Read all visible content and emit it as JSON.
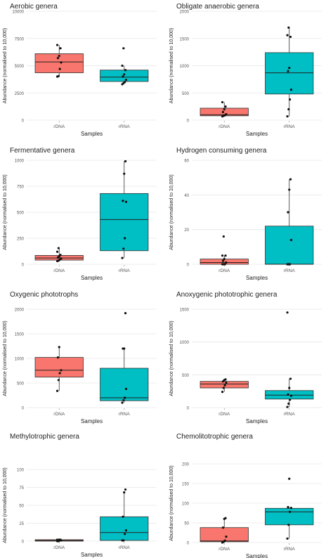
{
  "colors": {
    "rdna_fill": "#F8766D",
    "rrna_fill": "#00BFC4",
    "grid": "#e6e6e6",
    "text": "#222222",
    "axis_text": "#555555"
  },
  "chart_data": [
    {
      "type": "box",
      "title": "Aerobic genera",
      "xlabel": "Samples",
      "ylabel": "Abundance (normalised to 10,000)",
      "categories": [
        "rDNA",
        "rRNA"
      ],
      "ylim": [
        0,
        10000
      ],
      "yticks": [
        "0",
        "2500",
        "5000",
        "7500",
        "10000"
      ],
      "boxes": [
        {
          "name": "rDNA",
          "min": 4000,
          "q1": 4350,
          "median": 5350,
          "q3": 6100,
          "max": 6900,
          "points": [
            4000,
            4050,
            4700,
            5300,
            5700,
            5900,
            6600,
            6900
          ]
        },
        {
          "name": "rRNA",
          "min": 3300,
          "q1": 3550,
          "median": 3950,
          "q3": 4600,
          "max": 5000,
          "points": [
            3300,
            3400,
            3500,
            3700,
            4000,
            4200,
            4600,
            5000,
            6600
          ]
        }
      ]
    },
    {
      "type": "box",
      "title": "Obligate anaerobic genera",
      "xlabel": "Samples",
      "ylabel": "Abundance (normalised to 10,000)",
      "categories": [
        "rDNA",
        "rRNA"
      ],
      "ylim": [
        0,
        2000
      ],
      "yticks": [
        "0",
        "500",
        "1000",
        "1500",
        "2000"
      ],
      "boxes": [
        {
          "name": "rDNA",
          "min": 70,
          "q1": 80,
          "median": 100,
          "q3": 220,
          "max": 330,
          "points": [
            70,
            80,
            90,
            110,
            150,
            200,
            250,
            330
          ]
        },
        {
          "name": "rRNA",
          "min": 70,
          "q1": 480,
          "median": 870,
          "q3": 1240,
          "max": 1700,
          "points": [
            70,
            200,
            380,
            560,
            900,
            960,
            1530,
            1560,
            1700
          ]
        }
      ]
    },
    {
      "type": "box",
      "title": "Fermentative genera",
      "xlabel": "Samples",
      "ylabel": "Abundance (normalised to 10,000)",
      "categories": [
        "rDNA",
        "rRNA"
      ],
      "ylim": [
        0,
        1000
      ],
      "yticks": [
        "0",
        "250",
        "500",
        "750",
        "1000"
      ],
      "boxes": [
        {
          "name": "rDNA",
          "min": 30,
          "q1": 40,
          "median": 60,
          "q3": 85,
          "max": 155,
          "points": [
            30,
            35,
            45,
            55,
            65,
            75,
            90,
            120,
            155
          ]
        },
        {
          "name": "rRNA",
          "min": 60,
          "q1": 130,
          "median": 430,
          "q3": 680,
          "max": 990,
          "points": [
            60,
            150,
            250,
            600,
            610,
            870,
            990
          ]
        }
      ]
    },
    {
      "type": "box",
      "title": "Hydrogen consuming genera",
      "xlabel": "Samples",
      "ylabel": "Abundance (normalised to 10,000)",
      "categories": [
        "rDNA",
        "rRNA"
      ],
      "ylim": [
        0,
        60
      ],
      "yticks": [
        "0",
        "20",
        "40",
        "60"
      ],
      "boxes": [
        {
          "name": "rDNA",
          "min": 0,
          "q1": 0,
          "median": 1,
          "q3": 3,
          "max": 5,
          "points": [
            0,
            0,
            0,
            1,
            2,
            3,
            5,
            5,
            16
          ]
        },
        {
          "name": "rRNA",
          "min": 0,
          "q1": 0,
          "median": 0,
          "q3": 22,
          "max": 49,
          "points": [
            0,
            0,
            0,
            14,
            30,
            43,
            49
          ]
        }
      ]
    },
    {
      "type": "box",
      "title": "Oxygenic phototrophs",
      "xlabel": "Samples",
      "ylabel": "Abundance (normalised to 10,000)",
      "categories": [
        "rDNA",
        "rRNA"
      ],
      "ylim": [
        0,
        2000
      ],
      "yticks": [
        "0",
        "500",
        "1000",
        "1500",
        "2000"
      ],
      "boxes": [
        {
          "name": "rDNA",
          "min": 340,
          "q1": 620,
          "median": 760,
          "q3": 1020,
          "max": 1230,
          "points": [
            340,
            560,
            700,
            760,
            1020,
            1230
          ]
        },
        {
          "name": "rRNA",
          "min": 100,
          "q1": 140,
          "median": 200,
          "q3": 800,
          "max": 1200,
          "points": [
            100,
            150,
            200,
            380,
            1200,
            1200,
            1920
          ]
        }
      ]
    },
    {
      "type": "box",
      "title": "Anoxygenic phototrophic genera",
      "xlabel": "Samples",
      "ylabel": "Abundance (normalised to 10,000)",
      "categories": [
        "rDNA",
        "rRNA"
      ],
      "ylim": [
        0,
        1500
      ],
      "yticks": [
        "0",
        "500",
        "1000",
        "1500"
      ],
      "boxes": [
        {
          "name": "rDNA",
          "min": 240,
          "q1": 300,
          "median": 360,
          "q3": 400,
          "max": 430,
          "points": [
            240,
            300,
            340,
            380,
            400,
            420,
            430
          ]
        },
        {
          "name": "rRNA",
          "min": 10,
          "q1": 130,
          "median": 190,
          "q3": 260,
          "max": 440,
          "points": [
            10,
            60,
            120,
            180,
            200,
            300,
            440,
            1450
          ]
        }
      ]
    },
    {
      "type": "box",
      "title": "Methylotrophic genera",
      "xlabel": "Samples",
      "ylabel": "Abundance (normalised to 10,000)",
      "categories": [
        "rDNA",
        "rRNA"
      ],
      "ylim": [
        0,
        100
      ],
      "yticks": [
        "0",
        "25",
        "50",
        "75",
        "100"
      ],
      "boxes": [
        {
          "name": "rDNA",
          "min": 0,
          "q1": 0,
          "median": 1,
          "q3": 2,
          "max": 2,
          "points": [
            0,
            0,
            1,
            1,
            1,
            2,
            2,
            2
          ]
        },
        {
          "name": "rRNA",
          "min": 1,
          "q1": 1,
          "median": 12,
          "q3": 34,
          "max": 68,
          "points": [
            1,
            1,
            10,
            15,
            34,
            68,
            72
          ]
        }
      ]
    },
    {
      "type": "box",
      "title": "Chemolitotrophic genera",
      "xlabel": "Samples",
      "ylabel": "Abundance (normalised to 10,000)",
      "categories": [
        "rDNA",
        "rRNA"
      ],
      "ylim": [
        0,
        200
      ],
      "yticks": [
        "0",
        "50",
        "100",
        "150",
        "200"
      ],
      "boxes": [
        {
          "name": "rDNA",
          "min": 0,
          "q1": 2,
          "median": 4,
          "q3": 38,
          "max": 62,
          "points": [
            0,
            2,
            5,
            15,
            38,
            60,
            62
          ]
        },
        {
          "name": "rRNA",
          "min": 10,
          "q1": 45,
          "median": 78,
          "q3": 87,
          "max": 90,
          "points": [
            10,
            45,
            78,
            88,
            90,
            162
          ]
        }
      ]
    }
  ]
}
